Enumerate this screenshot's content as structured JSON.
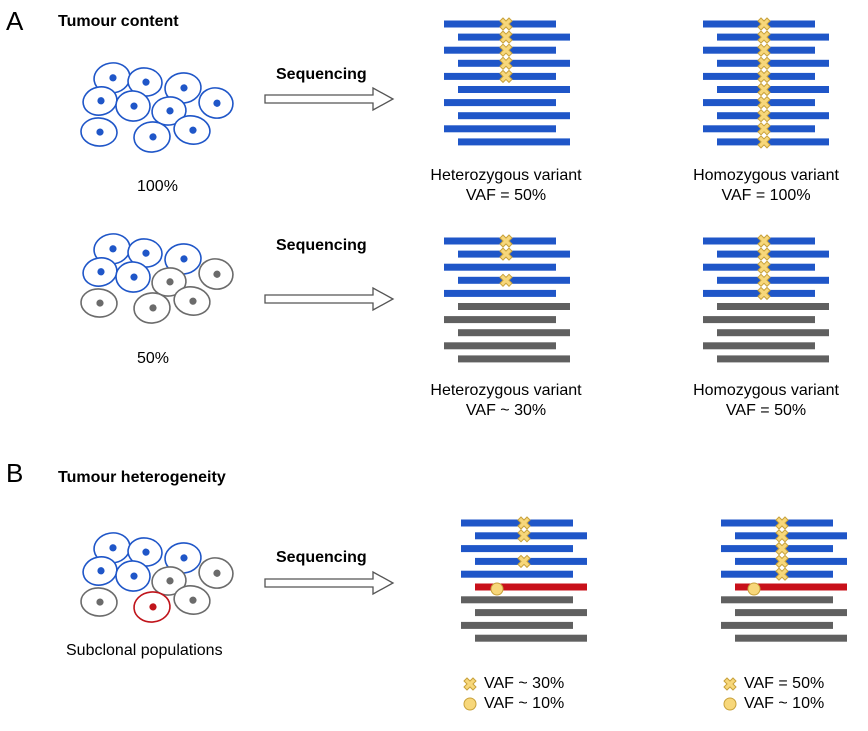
{
  "panel_a": {
    "letter": "A",
    "title": "Tumour content",
    "rows": [
      {
        "percent_label": "100%",
        "arrow_label": "Sequencing",
        "heterozygous": {
          "title": "Heterozygous variant",
          "vaf": "VAF = 50%"
        },
        "homozygous": {
          "title": "Homozygous variant",
          "vaf": "VAF = 100%"
        }
      },
      {
        "percent_label": "50%",
        "arrow_label": "Sequencing",
        "heterozygous": {
          "title": "Heterozygous variant",
          "vaf": "VAF ~ 30%"
        },
        "homozygous": {
          "title": "Homozygous variant",
          "vaf": "VAF = 50%"
        }
      }
    ]
  },
  "panel_b": {
    "letter": "B",
    "title": "Tumour heterogeneity",
    "population_label": "Subclonal populations",
    "arrow_label": "Sequencing",
    "legend_left": [
      {
        "icon": "cross-icon",
        "text": "VAF ~ 30%"
      },
      {
        "icon": "circle-icon",
        "text": "VAF ~ 10%"
      }
    ],
    "legend_right": [
      {
        "icon": "cross-icon",
        "text": "VAF = 50%"
      },
      {
        "icon": "circle-icon",
        "text": "VAF ~ 10%"
      }
    ]
  },
  "colors": {
    "tumour_cell": "#1f56c8",
    "normal_cell": "#6b6b6b",
    "subclone_cell": "#c0141b",
    "tumour_read": "#1f56c8",
    "normal_read": "#606060",
    "subclone_read": "#c8101a",
    "variant_marker": "#f7d77a",
    "variant_outline": "#c8a13a"
  }
}
